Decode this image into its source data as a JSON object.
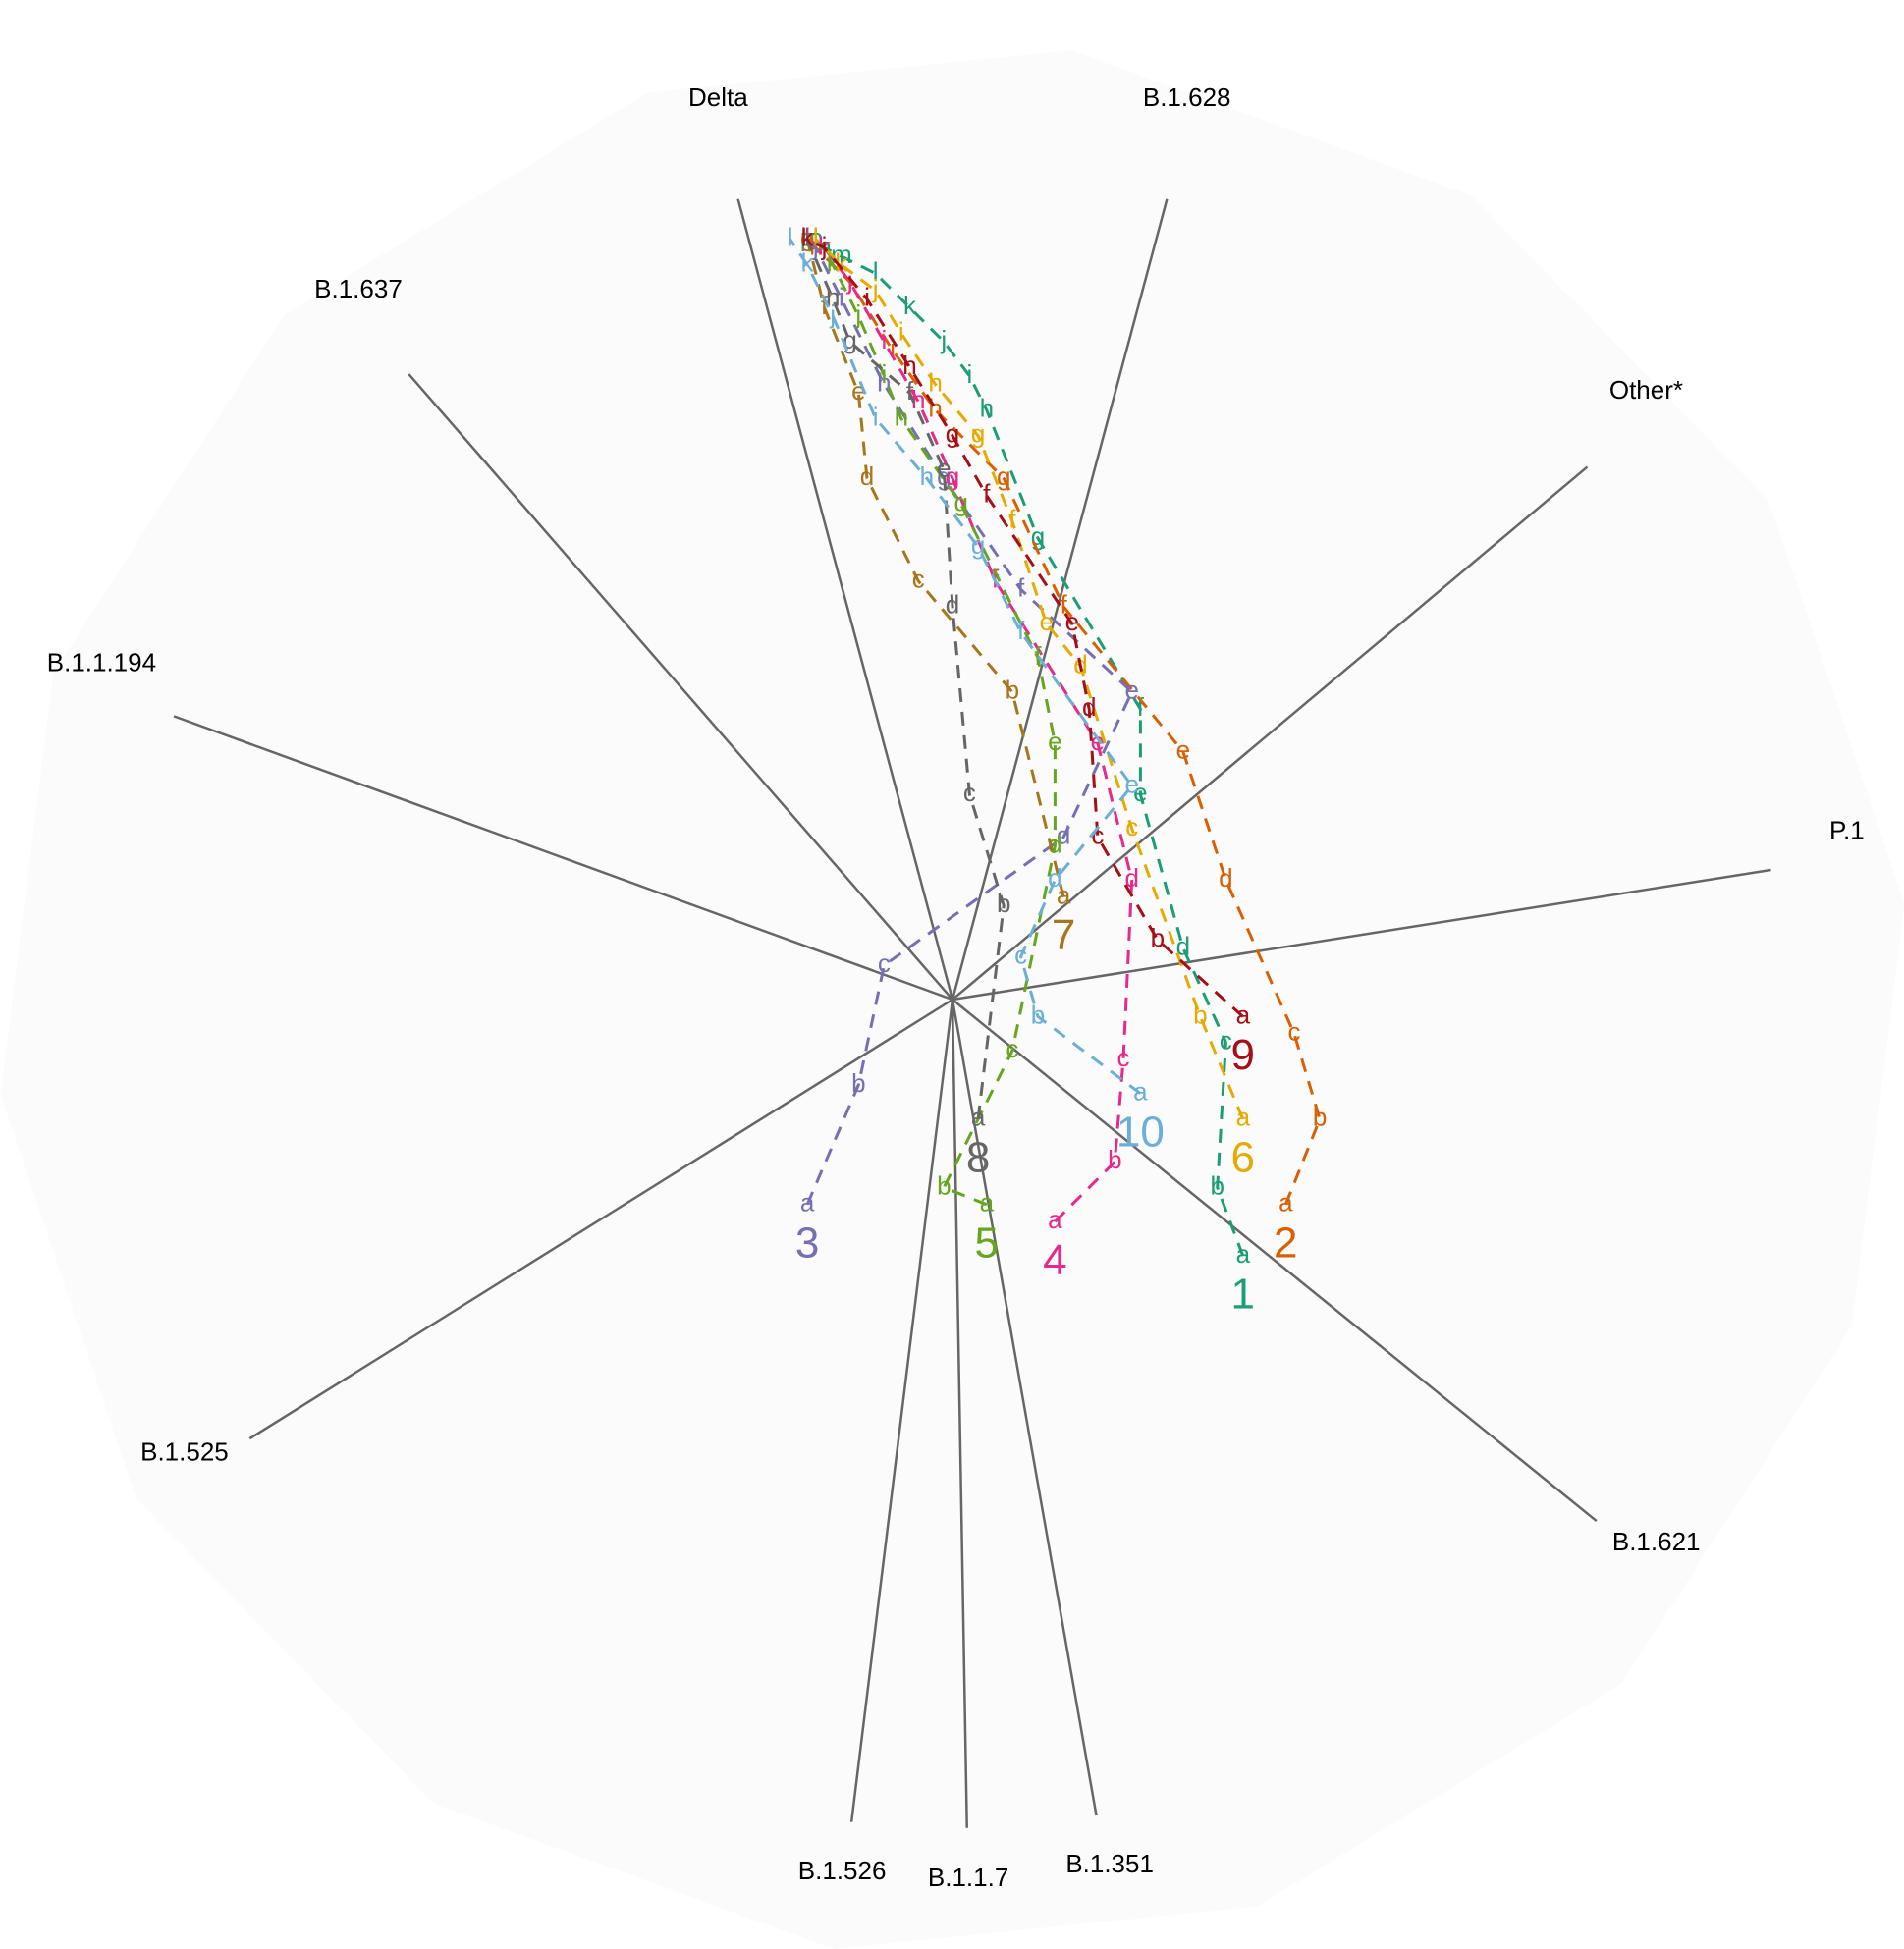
{
  "chart_data": {
    "type": "scatter",
    "subtype": "biplot-radial-trajectories",
    "title": "",
    "grid": false,
    "legend": "none",
    "axes": [
      {
        "name": "Delta",
        "angle_deg": 105
      },
      {
        "name": "B.1.628",
        "angle_deg": 75
      },
      {
        "name": "Other*",
        "angle_deg": 40
      },
      {
        "name": "P.1",
        "angle_deg": 9
      },
      {
        "name": "B.1.621",
        "angle_deg": -39
      },
      {
        "name": "B.1.1.7",
        "angle_deg": -89
      },
      {
        "name": "B.1.526",
        "angle_deg": -97
      },
      {
        "name": "B.1.351",
        "angle_deg": -80
      },
      {
        "name": "B.1.525",
        "angle_deg": -148
      },
      {
        "name": "B.1.1.194",
        "angle_deg": 160
      },
      {
        "name": "B.1.637",
        "angle_deg": 131
      }
    ],
    "xlim": [
      -1,
      1
    ],
    "ylim": [
      -1,
      1
    ],
    "series": [
      {
        "name": "1",
        "color": "#1b9e77",
        "points": [
          [
            0.34,
            -0.3
          ],
          [
            0.31,
            -0.22
          ],
          [
            0.32,
            -0.05
          ],
          [
            0.27,
            0.06
          ],
          [
            0.22,
            0.24
          ],
          [
            0.22,
            0.34
          ],
          [
            0.1,
            0.54
          ],
          [
            0.04,
            0.69
          ],
          [
            0.02,
            0.73
          ],
          [
            -0.01,
            0.77
          ],
          [
            -0.05,
            0.81
          ],
          [
            -0.09,
            0.85
          ],
          [
            -0.13,
            0.87
          ],
          [
            -0.15,
            0.88
          ],
          [
            -0.16,
            0.89
          ],
          [
            -0.17,
            0.89
          ]
        ]
      },
      {
        "name": "2",
        "color": "#d95f02",
        "points": [
          [
            0.39,
            -0.24
          ],
          [
            0.43,
            -0.14
          ],
          [
            0.4,
            -0.04
          ],
          [
            0.32,
            0.14
          ],
          [
            0.27,
            0.29
          ],
          [
            0.13,
            0.46
          ],
          [
            0.06,
            0.61
          ],
          [
            -0.02,
            0.69
          ],
          [
            -0.07,
            0.76
          ],
          [
            -0.12,
            0.84
          ],
          [
            -0.16,
            0.88
          ],
          [
            -0.17,
            0.89
          ]
        ]
      },
      {
        "name": "3",
        "color": "#7570b3",
        "points": [
          [
            -0.17,
            -0.24
          ],
          [
            -0.11,
            -0.1
          ],
          [
            -0.08,
            0.04
          ],
          [
            0.13,
            0.19
          ],
          [
            0.21,
            0.36
          ],
          [
            0.08,
            0.48
          ],
          [
            -0.01,
            0.61
          ],
          [
            -0.08,
            0.72
          ],
          [
            -0.13,
            0.82
          ],
          [
            -0.16,
            0.88
          ],
          [
            -0.17,
            0.89
          ]
        ]
      },
      {
        "name": "4",
        "color": "#e7298a",
        "points": [
          [
            0.12,
            -0.26
          ],
          [
            0.19,
            -0.19
          ],
          [
            0.2,
            -0.07
          ],
          [
            0.21,
            0.14
          ],
          [
            0.17,
            0.3
          ],
          [
            0.05,
            0.49
          ],
          [
            0.0,
            0.61
          ],
          [
            -0.04,
            0.7
          ],
          [
            -0.08,
            0.77
          ],
          [
            -0.12,
            0.84
          ],
          [
            -0.15,
            0.88
          ],
          [
            -0.17,
            0.89
          ]
        ]
      },
      {
        "name": "5",
        "color": "#66a61e",
        "points": [
          [
            0.04,
            -0.24
          ],
          [
            -0.01,
            -0.22
          ],
          [
            0.07,
            -0.06
          ],
          [
            0.12,
            0.18
          ],
          [
            0.12,
            0.3
          ],
          [
            0.1,
            0.4
          ],
          [
            0.01,
            0.58
          ],
          [
            -0.06,
            0.68
          ],
          [
            -0.08,
            0.73
          ],
          [
            -0.11,
            0.8
          ],
          [
            -0.14,
            0.86
          ],
          [
            -0.16,
            0.89
          ]
        ]
      },
      {
        "name": "6",
        "color": "#e6ab02",
        "points": [
          [
            0.34,
            -0.14
          ],
          [
            0.29,
            -0.02
          ],
          [
            0.21,
            0.2
          ],
          [
            0.15,
            0.39
          ],
          [
            0.11,
            0.44
          ],
          [
            0.07,
            0.56
          ],
          [
            0.03,
            0.66
          ],
          [
            -0.02,
            0.72
          ],
          [
            -0.06,
            0.78
          ],
          [
            -0.09,
            0.83
          ],
          [
            -0.13,
            0.86
          ],
          [
            -0.16,
            0.89
          ]
        ]
      },
      {
        "name": "7",
        "color": "#a6761d",
        "points": [
          [
            0.13,
            0.12
          ],
          [
            0.07,
            0.36
          ],
          [
            -0.04,
            0.49
          ],
          [
            -0.1,
            0.61
          ],
          [
            -0.11,
            0.71
          ],
          [
            -0.15,
            0.81
          ],
          [
            -0.17,
            0.89
          ]
        ]
      },
      {
        "name": "8",
        "color": "#666666",
        "points": [
          [
            0.03,
            -0.14
          ],
          [
            0.06,
            0.11
          ],
          [
            0.02,
            0.24
          ],
          [
            0.0,
            0.46
          ],
          [
            -0.01,
            0.62
          ],
          [
            -0.05,
            0.71
          ],
          [
            -0.12,
            0.77
          ],
          [
            -0.14,
            0.82
          ],
          [
            -0.17,
            0.89
          ]
        ]
      },
      {
        "name": "9",
        "color": "#a50f15",
        "points": [
          [
            0.34,
            -0.02
          ],
          [
            0.24,
            0.07
          ],
          [
            0.17,
            0.19
          ],
          [
            0.16,
            0.34
          ],
          [
            0.14,
            0.44
          ],
          [
            0.04,
            0.59
          ],
          [
            0.0,
            0.66
          ],
          [
            -0.05,
            0.74
          ],
          [
            -0.1,
            0.82
          ],
          [
            -0.15,
            0.88
          ],
          [
            -0.17,
            0.89
          ]
        ]
      },
      {
        "name": "10",
        "color": "#6baed6",
        "points": [
          [
            0.22,
            -0.11
          ],
          [
            0.1,
            -0.02
          ],
          [
            0.08,
            0.05
          ],
          [
            0.12,
            0.14
          ],
          [
            0.21,
            0.25
          ],
          [
            0.08,
            0.43
          ],
          [
            0.03,
            0.53
          ],
          [
            -0.03,
            0.61
          ],
          [
            -0.09,
            0.68
          ],
          [
            -0.14,
            0.8
          ],
          [
            -0.17,
            0.86
          ],
          [
            -0.19,
            0.89
          ]
        ]
      }
    ]
  }
}
